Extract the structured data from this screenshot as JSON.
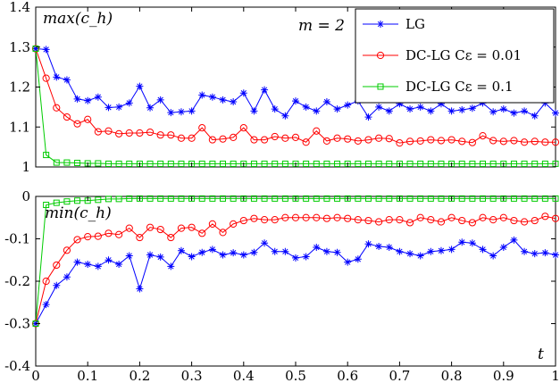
{
  "chart_data": [
    {
      "type": "line",
      "panel": "top",
      "annotation": "max(c_h)",
      "param_label": "m = 2",
      "xlim": [
        0,
        1
      ],
      "ylim": [
        1,
        1.4
      ],
      "x_ticks": [
        "0",
        "0.1",
        "0.2",
        "0.3",
        "0.4",
        "0.5",
        "0.6",
        "0.7",
        "0.8",
        "0.9",
        "1"
      ],
      "y_ticks": [
        "1",
        "1.1",
        "1.2",
        "1.3",
        "1.4"
      ],
      "y_tick_values": [
        1,
        1.1,
        1.2,
        1.3,
        1.4
      ],
      "legend": [
        "LG",
        "DC-LG  Cε = 0.01",
        "DC-LG  Cε = 0.1"
      ],
      "legend_position": "top-right",
      "series": [
        {
          "name": "LG",
          "color": "#0000ff",
          "marker": "star",
          "x": [
            0,
            0.02,
            0.04,
            0.06,
            0.08,
            0.1,
            0.12,
            0.14,
            0.16,
            0.18,
            0.2,
            0.22,
            0.24,
            0.26,
            0.28,
            0.3,
            0.32,
            0.34,
            0.36,
            0.38,
            0.4,
            0.42,
            0.44,
            0.46,
            0.48,
            0.5,
            0.52,
            0.54,
            0.56,
            0.58,
            0.6,
            0.62,
            0.64,
            0.66,
            0.68,
            0.7,
            0.72,
            0.74,
            0.76,
            0.78,
            0.8,
            0.82,
            0.84,
            0.86,
            0.88,
            0.9,
            0.92,
            0.94,
            0.96,
            0.98,
            1.0
          ],
          "values": [
            1.296,
            1.294,
            1.225,
            1.218,
            1.17,
            1.166,
            1.175,
            1.149,
            1.15,
            1.16,
            1.202,
            1.148,
            1.168,
            1.136,
            1.138,
            1.14,
            1.18,
            1.175,
            1.168,
            1.163,
            1.185,
            1.14,
            1.193,
            1.145,
            1.128,
            1.165,
            1.15,
            1.14,
            1.163,
            1.145,
            1.155,
            1.165,
            1.125,
            1.15,
            1.14,
            1.158,
            1.145,
            1.15,
            1.14,
            1.158,
            1.14,
            1.143,
            1.147,
            1.16,
            1.138,
            1.145,
            1.135,
            1.14,
            1.128,
            1.16,
            1.135
          ]
        },
        {
          "name": "DC-LG  Cε = 0.01",
          "color": "#ff0000",
          "marker": "circle",
          "x": [
            0,
            0.02,
            0.04,
            0.06,
            0.08,
            0.1,
            0.12,
            0.14,
            0.16,
            0.18,
            0.2,
            0.22,
            0.24,
            0.26,
            0.28,
            0.3,
            0.32,
            0.34,
            0.36,
            0.38,
            0.4,
            0.42,
            0.44,
            0.46,
            0.48,
            0.5,
            0.52,
            0.54,
            0.56,
            0.58,
            0.6,
            0.62,
            0.64,
            0.66,
            0.68,
            0.7,
            0.72,
            0.74,
            0.76,
            0.78,
            0.8,
            0.82,
            0.84,
            0.86,
            0.88,
            0.9,
            0.92,
            0.94,
            0.96,
            0.98,
            1.0
          ],
          "values": [
            1.296,
            1.222,
            1.148,
            1.125,
            1.108,
            1.119,
            1.088,
            1.09,
            1.083,
            1.085,
            1.085,
            1.087,
            1.08,
            1.08,
            1.072,
            1.072,
            1.098,
            1.068,
            1.07,
            1.074,
            1.098,
            1.068,
            1.068,
            1.076,
            1.072,
            1.074,
            1.062,
            1.09,
            1.065,
            1.072,
            1.07,
            1.065,
            1.068,
            1.072,
            1.071,
            1.06,
            1.064,
            1.065,
            1.068,
            1.066,
            1.068,
            1.064,
            1.061,
            1.078,
            1.066,
            1.064,
            1.066,
            1.062,
            1.064,
            1.062,
            1.062
          ]
        },
        {
          "name": "DC-LG  Cε = 0.1",
          "color": "#00cc00",
          "marker": "square",
          "x": [
            0,
            0.02,
            0.04,
            0.06,
            0.08,
            0.1,
            0.12,
            0.14,
            0.16,
            0.18,
            0.2,
            0.22,
            0.24,
            0.26,
            0.28,
            0.3,
            0.32,
            0.34,
            0.36,
            0.38,
            0.4,
            0.42,
            0.44,
            0.46,
            0.48,
            0.5,
            0.52,
            0.54,
            0.56,
            0.58,
            0.6,
            0.62,
            0.64,
            0.66,
            0.68,
            0.7,
            0.72,
            0.74,
            0.76,
            0.78,
            0.8,
            0.82,
            0.84,
            0.86,
            0.88,
            0.9,
            0.92,
            0.94,
            0.96,
            0.98,
            1.0
          ],
          "values": [
            1.296,
            1.03,
            1.011,
            1.011,
            1.01,
            1.009,
            1.009,
            1.008,
            1.008,
            1.008,
            1.008,
            1.008,
            1.008,
            1.008,
            1.008,
            1.008,
            1.008,
            1.008,
            1.008,
            1.008,
            1.008,
            1.008,
            1.008,
            1.008,
            1.008,
            1.008,
            1.008,
            1.008,
            1.008,
            1.008,
            1.008,
            1.008,
            1.008,
            1.008,
            1.008,
            1.008,
            1.008,
            1.008,
            1.008,
            1.008,
            1.008,
            1.008,
            1.008,
            1.008,
            1.008,
            1.008,
            1.008,
            1.008,
            1.008,
            1.008,
            1.008
          ]
        }
      ]
    },
    {
      "type": "line",
      "panel": "bottom",
      "annotation": "min(c_h)",
      "xlabel": "t",
      "xlim": [
        0,
        1
      ],
      "ylim": [
        -0.4,
        0
      ],
      "x_ticks": [
        "0",
        "0.1",
        "0.2",
        "0.3",
        "0.4",
        "0.5",
        "0.6",
        "0.7",
        "0.8",
        "0.9",
        "1"
      ],
      "y_ticks": [
        "0",
        "-0.1",
        "-0.2",
        "-0.3",
        "-0.4"
      ],
      "y_tick_values": [
        0,
        -0.1,
        -0.2,
        -0.3,
        -0.4
      ],
      "series": [
        {
          "name": "LG",
          "color": "#0000ff",
          "marker": "star",
          "x": [
            0,
            0.02,
            0.04,
            0.06,
            0.08,
            0.1,
            0.12,
            0.14,
            0.16,
            0.18,
            0.2,
            0.22,
            0.24,
            0.26,
            0.28,
            0.3,
            0.32,
            0.34,
            0.36,
            0.38,
            0.4,
            0.42,
            0.44,
            0.46,
            0.48,
            0.5,
            0.52,
            0.54,
            0.56,
            0.58,
            0.6,
            0.62,
            0.64,
            0.66,
            0.68,
            0.7,
            0.72,
            0.74,
            0.76,
            0.78,
            0.8,
            0.82,
            0.84,
            0.86,
            0.88,
            0.9,
            0.92,
            0.94,
            0.96,
            0.98,
            1.0
          ],
          "values": [
            -0.3,
            -0.255,
            -0.21,
            -0.19,
            -0.155,
            -0.16,
            -0.165,
            -0.15,
            -0.16,
            -0.14,
            -0.218,
            -0.138,
            -0.143,
            -0.165,
            -0.128,
            -0.142,
            -0.132,
            -0.125,
            -0.138,
            -0.133,
            -0.138,
            -0.132,
            -0.11,
            -0.13,
            -0.13,
            -0.145,
            -0.142,
            -0.12,
            -0.13,
            -0.132,
            -0.155,
            -0.148,
            -0.112,
            -0.118,
            -0.12,
            -0.13,
            -0.135,
            -0.14,
            -0.13,
            -0.128,
            -0.125,
            -0.108,
            -0.11,
            -0.125,
            -0.14,
            -0.12,
            -0.103,
            -0.13,
            -0.135,
            -0.133,
            -0.138
          ]
        },
        {
          "name": "DC-LG  Cε = 0.01",
          "color": "#ff0000",
          "marker": "circle",
          "x": [
            0,
            0.02,
            0.04,
            0.06,
            0.08,
            0.1,
            0.12,
            0.14,
            0.16,
            0.18,
            0.2,
            0.22,
            0.24,
            0.26,
            0.28,
            0.3,
            0.32,
            0.34,
            0.36,
            0.38,
            0.4,
            0.42,
            0.44,
            0.46,
            0.48,
            0.5,
            0.52,
            0.54,
            0.56,
            0.58,
            0.6,
            0.62,
            0.64,
            0.66,
            0.68,
            0.7,
            0.72,
            0.74,
            0.76,
            0.78,
            0.8,
            0.82,
            0.84,
            0.86,
            0.88,
            0.9,
            0.92,
            0.94,
            0.96,
            0.98,
            1.0
          ],
          "values": [
            -0.3,
            -0.2,
            -0.162,
            -0.127,
            -0.102,
            -0.095,
            -0.094,
            -0.087,
            -0.09,
            -0.075,
            -0.097,
            -0.073,
            -0.078,
            -0.097,
            -0.075,
            -0.073,
            -0.087,
            -0.065,
            -0.085,
            -0.065,
            -0.057,
            -0.052,
            -0.055,
            -0.055,
            -0.05,
            -0.05,
            -0.05,
            -0.05,
            -0.052,
            -0.05,
            -0.052,
            -0.055,
            -0.057,
            -0.06,
            -0.055,
            -0.055,
            -0.062,
            -0.05,
            -0.055,
            -0.06,
            -0.05,
            -0.057,
            -0.062,
            -0.05,
            -0.055,
            -0.05,
            -0.057,
            -0.06,
            -0.057,
            -0.047,
            -0.052
          ]
        },
        {
          "name": "DC-LG  Cε = 0.1",
          "color": "#00cc00",
          "marker": "square",
          "x": [
            0,
            0.02,
            0.04,
            0.06,
            0.08,
            0.1,
            0.12,
            0.14,
            0.16,
            0.18,
            0.2,
            0.22,
            0.24,
            0.26,
            0.28,
            0.3,
            0.32,
            0.34,
            0.36,
            0.38,
            0.4,
            0.42,
            0.44,
            0.46,
            0.48,
            0.5,
            0.52,
            0.54,
            0.56,
            0.58,
            0.6,
            0.62,
            0.64,
            0.66,
            0.68,
            0.7,
            0.72,
            0.74,
            0.76,
            0.78,
            0.8,
            0.82,
            0.84,
            0.86,
            0.88,
            0.9,
            0.92,
            0.94,
            0.96,
            0.98,
            1.0
          ],
          "values": [
            -0.3,
            -0.02,
            -0.015,
            -0.012,
            -0.01,
            -0.01,
            -0.008,
            -0.006,
            -0.006,
            -0.005,
            -0.005,
            -0.005,
            -0.005,
            -0.005,
            -0.005,
            -0.005,
            -0.005,
            -0.005,
            -0.005,
            -0.005,
            -0.005,
            -0.005,
            -0.005,
            -0.005,
            -0.005,
            -0.005,
            -0.005,
            -0.005,
            -0.005,
            -0.005,
            -0.005,
            -0.005,
            -0.005,
            -0.005,
            -0.005,
            -0.005,
            -0.005,
            -0.005,
            -0.005,
            -0.005,
            -0.005,
            -0.005,
            -0.005,
            -0.005,
            -0.005,
            -0.005,
            -0.005,
            -0.005,
            -0.005,
            -0.005,
            -0.005
          ]
        }
      ]
    }
  ]
}
